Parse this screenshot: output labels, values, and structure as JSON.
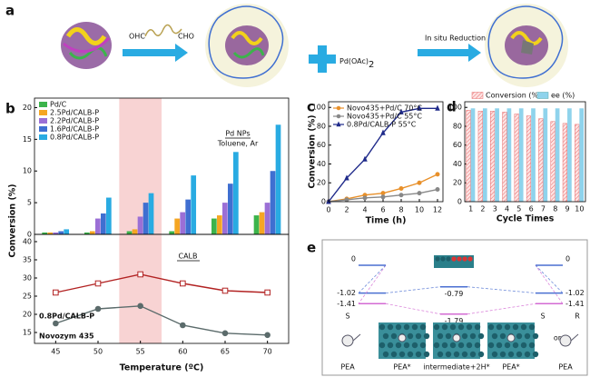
{
  "panel_labels": [
    "a",
    "b",
    "c",
    "d",
    "e"
  ],
  "scheme_a": {
    "reagent_left": "OHC",
    "reagent_right": "CHO",
    "metal": "Pd(OAc)",
    "metal_subscript": "2",
    "step": "In situ Reduction"
  },
  "chart_data": [
    {
      "type": "bar",
      "x": [
        45,
        50,
        55,
        60,
        65,
        70
      ],
      "xlim": [
        42.5,
        72.5
      ],
      "ylim": [
        0,
        21.5
      ],
      "yticks": [
        0,
        5,
        10,
        15,
        20
      ],
      "y_label": "Conversion (%)",
      "highlight": [
        52.5,
        57.5
      ],
      "highlight_color": "#f4b6b6",
      "legend": "upper left",
      "annotations": [
        "Pd NPs",
        "Toluene, Ar"
      ],
      "series": [
        {
          "name": "Pd/C",
          "color": "#3cb44b",
          "values": [
            0.3,
            0.3,
            0.5,
            0.5,
            2.5,
            3
          ]
        },
        {
          "name": "2.5Pd/CALB-P",
          "color": "#f5a623",
          "values": [
            0.3,
            0.5,
            0.8,
            2.5,
            3,
            3.5
          ]
        },
        {
          "name": "2.2Pd/CALB-P",
          "color": "#9b6fd6",
          "values": [
            0.3,
            2.5,
            2.8,
            3.5,
            5,
            5
          ]
        },
        {
          "name": "1.6Pd/CALB-P",
          "color": "#3f6fd1",
          "values": [
            0.5,
            3.3,
            5,
            5.5,
            8,
            10
          ]
        },
        {
          "name": "0.8Pd/CALB-P",
          "color": "#29abe2",
          "values": [
            0.8,
            5.8,
            6.5,
            9.3,
            13,
            17.3
          ]
        }
      ]
    },
    {
      "type": "line",
      "x": [
        45,
        50,
        55,
        60,
        65,
        70
      ],
      "xlim": [
        42.5,
        72.5
      ],
      "xticks": [
        45,
        50,
        55,
        60,
        65,
        70
      ],
      "ylim": [
        12,
        42
      ],
      "yticks": [
        15,
        20,
        25,
        30,
        35,
        40
      ],
      "x_label": "Temperature (ºC)",
      "highlight": [
        52.5,
        57.5
      ],
      "highlight_color": "#f4b6b6",
      "legend": "lower left",
      "annotations": [
        "CALB"
      ],
      "series": [
        {
          "name": "0.8Pd/CALB-P",
          "color": "#b22222",
          "marker": "square",
          "values": [
            26,
            28.5,
            31,
            28.5,
            26.5,
            26
          ]
        },
        {
          "name": "Novozym 435",
          "color": "#5b6b6b",
          "marker": "circle",
          "values": [
            17.5,
            21.5,
            22.3,
            17,
            14.8,
            14.3
          ]
        }
      ]
    },
    {
      "type": "line",
      "x": [
        0,
        2,
        4,
        6,
        8,
        10,
        12
      ],
      "xlim": [
        0,
        12.6
      ],
      "xticks": [
        0,
        2,
        4,
        6,
        8,
        10,
        12
      ],
      "ylim": [
        0,
        106
      ],
      "yticks": [
        0,
        20,
        40,
        60,
        80,
        100
      ],
      "x_label": "Time (h)",
      "y_label": "Conversion (%)",
      "legend": "upper left",
      "series": [
        {
          "name": "Novo435+Pd/C 70°C",
          "color": "#e8902a",
          "marker": "circle",
          "values": [
            0,
            3,
            7,
            9,
            14,
            20,
            29
          ]
        },
        {
          "name": "Novo435+Pd/C 55°C",
          "color": "#888888",
          "marker": "circle",
          "values": [
            0,
            2,
            4,
            5,
            7,
            9,
            13
          ]
        },
        {
          "name": "0.8Pd/CALB-P 55°C",
          "color": "#1f2a8a",
          "marker": "triangle",
          "values": [
            0,
            25,
            45,
            73,
            95,
            99,
            99
          ]
        }
      ]
    },
    {
      "type": "bar",
      "categories": [
        "1",
        "2",
        "3",
        "4",
        "5",
        "6",
        "7",
        "8",
        "9",
        "10"
      ],
      "ylim": [
        0,
        106
      ],
      "yticks": [
        0,
        20,
        40,
        60,
        80,
        100
      ],
      "x_label": "Cycle Times",
      "legend": "top",
      "series": [
        {
          "name": "Conversion (%)",
          "color": "#e86b6b",
          "hatch": true,
          "values": [
            97,
            96,
            96,
            95,
            93,
            91,
            88,
            85,
            83,
            82
          ]
        },
        {
          "name": "ee (%)",
          "color": "#8fd3ec",
          "values": [
            99,
            99,
            99,
            99,
            99,
            99,
            99,
            99,
            99,
            99
          ]
        }
      ]
    }
  ],
  "diagram_e": {
    "energies": [
      0,
      -1.02,
      -1.41,
      -0.79,
      -1.79,
      -1.41,
      -1.02,
      0
    ],
    "species": [
      "PEA",
      "PEA*",
      "intermediate+2H*",
      "PEA*",
      "PEA"
    ],
    "chirality": [
      "S",
      "S",
      "or",
      "R"
    ]
  }
}
